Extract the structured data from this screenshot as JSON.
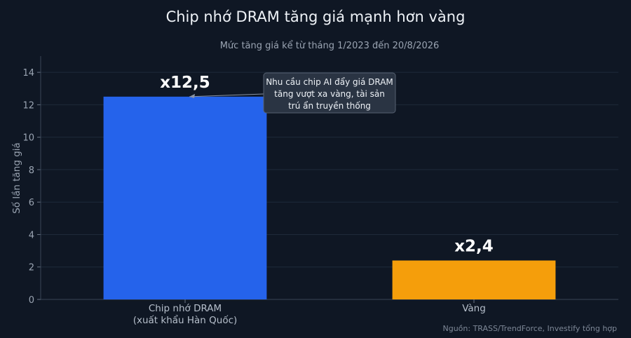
{
  "colors": {
    "background": "#0f1724",
    "dram_bar": "#2563eb",
    "gold_bar": "#f59e0b",
    "grid": "#1f2a3a",
    "annotation_bg": "#2a3443"
  },
  "source": "Nguồn: TRASS/TrendForce, Investify tổng hợp",
  "annotation": {
    "lines": [
      "Nhu cầu chip AI đẩy giá DRAM",
      "tăng vượt xa vàng, tài sản",
      "trú ẩn truyền thống"
    ],
    "target_category_index": 0
  },
  "chart_data": {
    "type": "bar",
    "title": "Chip nhớ DRAM tăng giá mạnh hơn vàng",
    "subtitle": "Mức tăng giá kể từ tháng 1/2023 đến 20/8/2026",
    "ylabel": "Số lần tăng giá",
    "xlabel": "",
    "ylim": [
      0,
      15
    ],
    "yticks": [
      0,
      2,
      4,
      6,
      8,
      10,
      12,
      14
    ],
    "grid": true,
    "categories": [
      [
        "Chip nhớ DRAM",
        "(xuất khẩu Hàn Quốc)"
      ],
      [
        "Vàng"
      ]
    ],
    "values": [
      12.5,
      2.4
    ],
    "data_labels": [
      "x12,5",
      "x2,4"
    ],
    "bar_colors": [
      "#2563eb",
      "#f59e0b"
    ]
  }
}
